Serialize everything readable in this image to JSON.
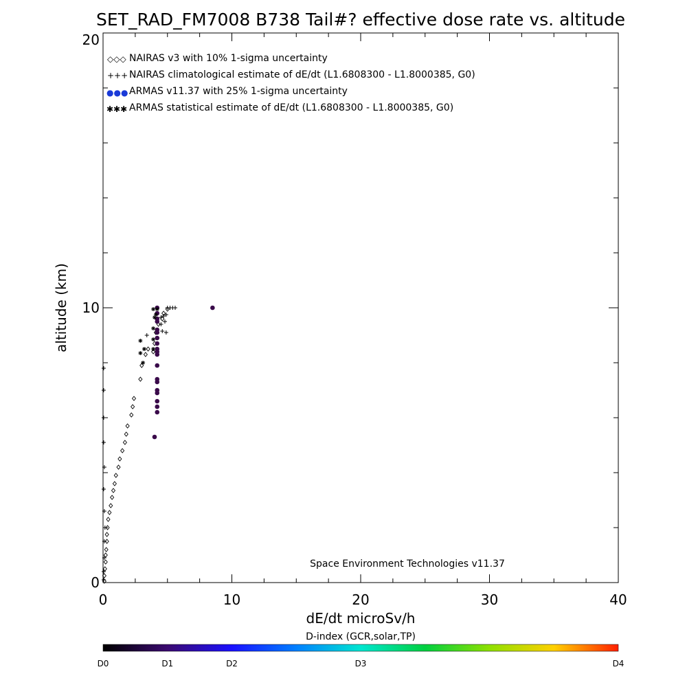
{
  "chart_data": {
    "type": "scatter",
    "title": "SET_RAD_FM7008  B738 Tail#? effective dose rate vs. altitude",
    "xlabel": "dE/dt microSv/h",
    "ylabel": "altitude (km)",
    "xlim": [
      0,
      40
    ],
    "ylim": [
      0,
      20
    ],
    "x_ticks": [
      "0",
      "10",
      "20",
      "30",
      "40"
    ],
    "y_ticks": [
      "0",
      "10",
      "20"
    ],
    "grid": false,
    "legend_position": "top-left",
    "legend": [
      {
        "marker": "◇◇◇",
        "text": "NAIRAS v3 with 10% 1-sigma uncertainty"
      },
      {
        "marker": "+++",
        "text": "NAIRAS climatological estimate of dE/dt (L1.6808300 - L1.8000385, G0)"
      },
      {
        "marker": "●●●",
        "text": "ARMAS v11.37 with 25% 1-sigma uncertainty"
      },
      {
        "marker": "✱✱✱",
        "text": "ARMAS statistical estimate of dE/dt (L1.6808300 - L1.8000385, G0)"
      }
    ],
    "annotation": "Space Environment Technologies v11.37",
    "colorbar": {
      "title": "D-index (GCR,solar,TP)",
      "labels": [
        {
          "text": "D0",
          "value": 0.0
        },
        {
          "text": "D1",
          "value": 0.125
        },
        {
          "text": "D2",
          "value": 0.25
        },
        {
          "text": "D3",
          "value": 0.5
        },
        {
          "text": "D4",
          "value": 1.0
        }
      ]
    },
    "series": [
      {
        "name": "NAIRAS v3 with 10% 1-sigma uncertainty",
        "marker": "diamond",
        "color": "#000000",
        "points": [
          [
            0.1,
            0.05
          ],
          [
            0.1,
            0.25
          ],
          [
            0.15,
            0.5
          ],
          [
            0.2,
            0.75
          ],
          [
            0.2,
            1.0
          ],
          [
            0.25,
            1.2
          ],
          [
            0.3,
            1.5
          ],
          [
            0.3,
            1.75
          ],
          [
            0.35,
            2.0
          ],
          [
            0.4,
            2.3
          ],
          [
            0.5,
            2.55
          ],
          [
            0.6,
            2.8
          ],
          [
            0.7,
            3.1
          ],
          [
            0.8,
            3.35
          ],
          [
            0.9,
            3.6
          ],
          [
            1.0,
            3.9
          ],
          [
            1.2,
            4.2
          ],
          [
            1.3,
            4.5
          ],
          [
            1.5,
            4.8
          ],
          [
            1.7,
            5.1
          ],
          [
            1.8,
            5.4
          ],
          [
            1.9,
            5.7
          ],
          [
            2.2,
            6.1
          ],
          [
            2.3,
            6.4
          ],
          [
            2.4,
            6.7
          ],
          [
            2.9,
            7.4
          ],
          [
            3.0,
            7.9
          ],
          [
            3.3,
            8.3
          ],
          [
            3.5,
            8.5
          ],
          [
            3.9,
            8.4
          ],
          [
            4.0,
            8.7
          ],
          [
            4.1,
            9.1
          ],
          [
            4.3,
            9.4
          ],
          [
            4.6,
            9.6
          ],
          [
            4.7,
            9.8
          ],
          [
            5.0,
            9.95
          ]
        ]
      },
      {
        "name": "NAIRAS climatological estimate of dE/dt (L1.6808300 - L1.8000385, G0)",
        "marker": "plus",
        "color": "#000000",
        "points": [
          [
            0.05,
            0.1
          ],
          [
            0.05,
            0.4
          ],
          [
            0.1,
            0.9
          ],
          [
            0.1,
            1.5
          ],
          [
            0.15,
            2.0
          ],
          [
            0.1,
            2.6
          ],
          [
            0.05,
            3.4
          ],
          [
            0.1,
            4.2
          ],
          [
            0.05,
            5.1
          ],
          [
            0.05,
            6.0
          ],
          [
            0.05,
            7.0
          ],
          [
            0.05,
            7.8
          ],
          [
            3.4,
            9.0
          ],
          [
            4.5,
            9.4
          ],
          [
            4.8,
            9.5
          ],
          [
            4.6,
            9.15
          ],
          [
            4.9,
            9.1
          ],
          [
            4.5,
            9.65
          ],
          [
            4.7,
            9.7
          ],
          [
            4.9,
            9.75
          ],
          [
            5.0,
            10.0
          ],
          [
            5.2,
            10.0
          ],
          [
            5.4,
            10.0
          ],
          [
            5.6,
            10.0
          ]
        ]
      },
      {
        "name": "ARMAS v11.37 with 25% 1-sigma uncertainty",
        "marker": "dot",
        "color": "#3a0a4a",
        "points": [
          [
            4.0,
            5.3
          ],
          [
            4.2,
            6.2
          ],
          [
            4.2,
            6.4
          ],
          [
            4.2,
            6.6
          ],
          [
            4.2,
            6.9
          ],
          [
            4.2,
            7.0
          ],
          [
            4.2,
            7.3
          ],
          [
            4.2,
            7.4
          ],
          [
            4.2,
            7.9
          ],
          [
            4.2,
            8.3
          ],
          [
            4.2,
            8.4
          ],
          [
            4.2,
            8.5
          ],
          [
            4.2,
            8.7
          ],
          [
            4.2,
            8.9
          ],
          [
            4.2,
            9.1
          ],
          [
            4.2,
            9.2
          ],
          [
            4.2,
            9.5
          ],
          [
            4.2,
            9.6
          ],
          [
            4.2,
            9.8
          ],
          [
            4.2,
            10.0
          ],
          [
            8.5,
            10.0
          ]
        ]
      },
      {
        "name": "ARMAS statistical estimate of dE/dt (L1.6808300 - L1.8000385, G0)",
        "marker": "asterisk",
        "color": "#000000",
        "points": [
          [
            2.9,
            8.8
          ],
          [
            2.9,
            8.35
          ],
          [
            3.2,
            8.5
          ],
          [
            3.1,
            8.0
          ],
          [
            3.9,
            8.85
          ],
          [
            3.9,
            8.5
          ],
          [
            3.9,
            9.25
          ],
          [
            4.0,
            9.65
          ],
          [
            3.9,
            9.95
          ],
          [
            4.1,
            9.75
          ],
          [
            4.2,
            9.95
          ]
        ]
      }
    ]
  }
}
